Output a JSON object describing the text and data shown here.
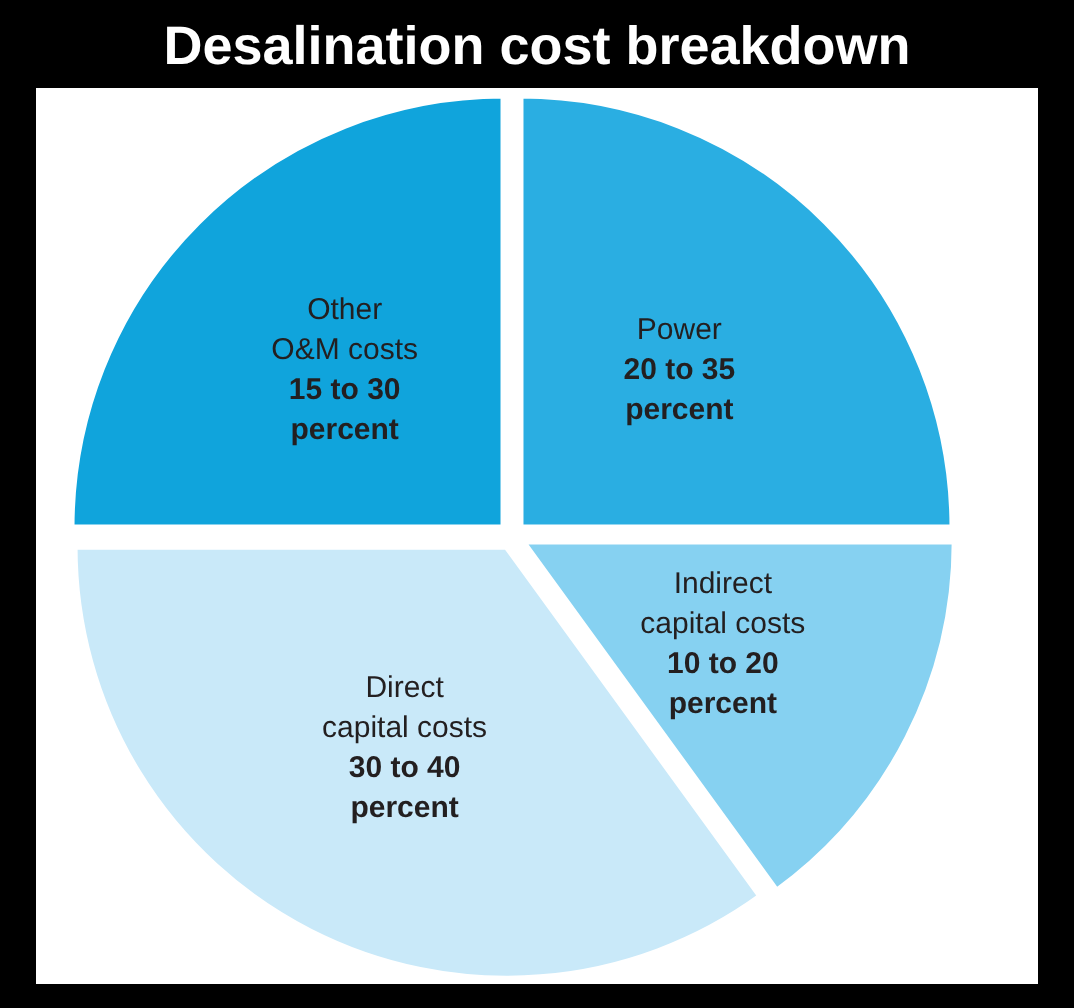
{
  "chart_data": {
    "type": "pie",
    "title": "Desalination cost breakdown",
    "categories": [
      "Power",
      "Indirect capital costs",
      "Direct capital costs",
      "Other O&M costs"
    ],
    "values": [
      25,
      15,
      35,
      25
    ],
    "colors": [
      "#2aaee2",
      "#86d1f1",
      "#c9e9f9",
      "#10a4dc"
    ],
    "annotations": [
      "20 to 35 percent",
      "10 to 20 percent",
      "30 to 40 percent",
      "15 to 30 percent"
    ]
  }
}
